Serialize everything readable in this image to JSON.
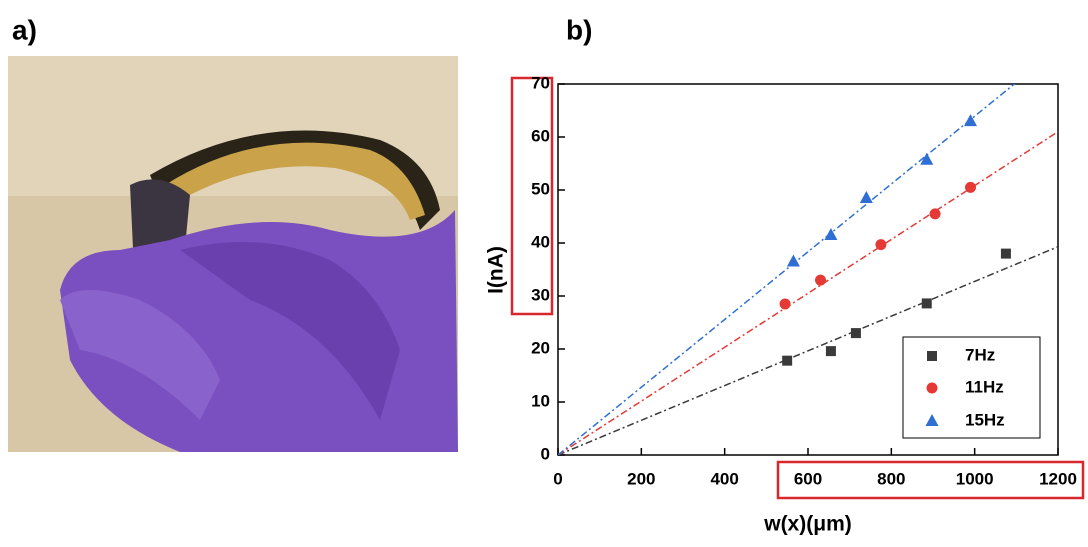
{
  "panels": [
    "a)",
    "b)"
  ],
  "chart_data": {
    "type": "scatter",
    "x_label": "w(x)(μm)",
    "y_label": "I(nA)",
    "xlim": [
      0,
      1200
    ],
    "xticks": [
      0,
      200,
      400,
      600,
      800,
      1000,
      1200
    ],
    "ylim": [
      0,
      70
    ],
    "yticks": [
      0,
      10,
      20,
      30,
      40,
      50,
      60,
      70
    ],
    "legend": "lower right",
    "series": [
      {
        "name": "7Hz",
        "color": "#3a3a3a",
        "marker": "square",
        "x": [
          550,
          655,
          715,
          885,
          1075
        ],
        "values": [
          17.8,
          19.6,
          23,
          28.6,
          38
        ],
        "fit_x": [
          0,
          1200
        ],
        "fit_y": [
          0,
          39.3
        ]
      },
      {
        "name": "11Hz",
        "color": "#e53935",
        "marker": "circle",
        "x": [
          545,
          630,
          775,
          905,
          990
        ],
        "values": [
          28.5,
          33,
          39.7,
          45.5,
          50.5
        ],
        "fit_x": [
          0,
          1200
        ],
        "fit_y": [
          0,
          61
        ]
      },
      {
        "name": "15Hz",
        "color": "#2f6fd4",
        "marker": "triangle",
        "x": [
          565,
          655,
          740,
          885,
          990
        ],
        "values": [
          36.5,
          41.5,
          48.5,
          55.7,
          63
        ],
        "fit_x": [
          0,
          1200
        ],
        "fit_y": [
          0,
          76.7
        ]
      }
    ]
  }
}
